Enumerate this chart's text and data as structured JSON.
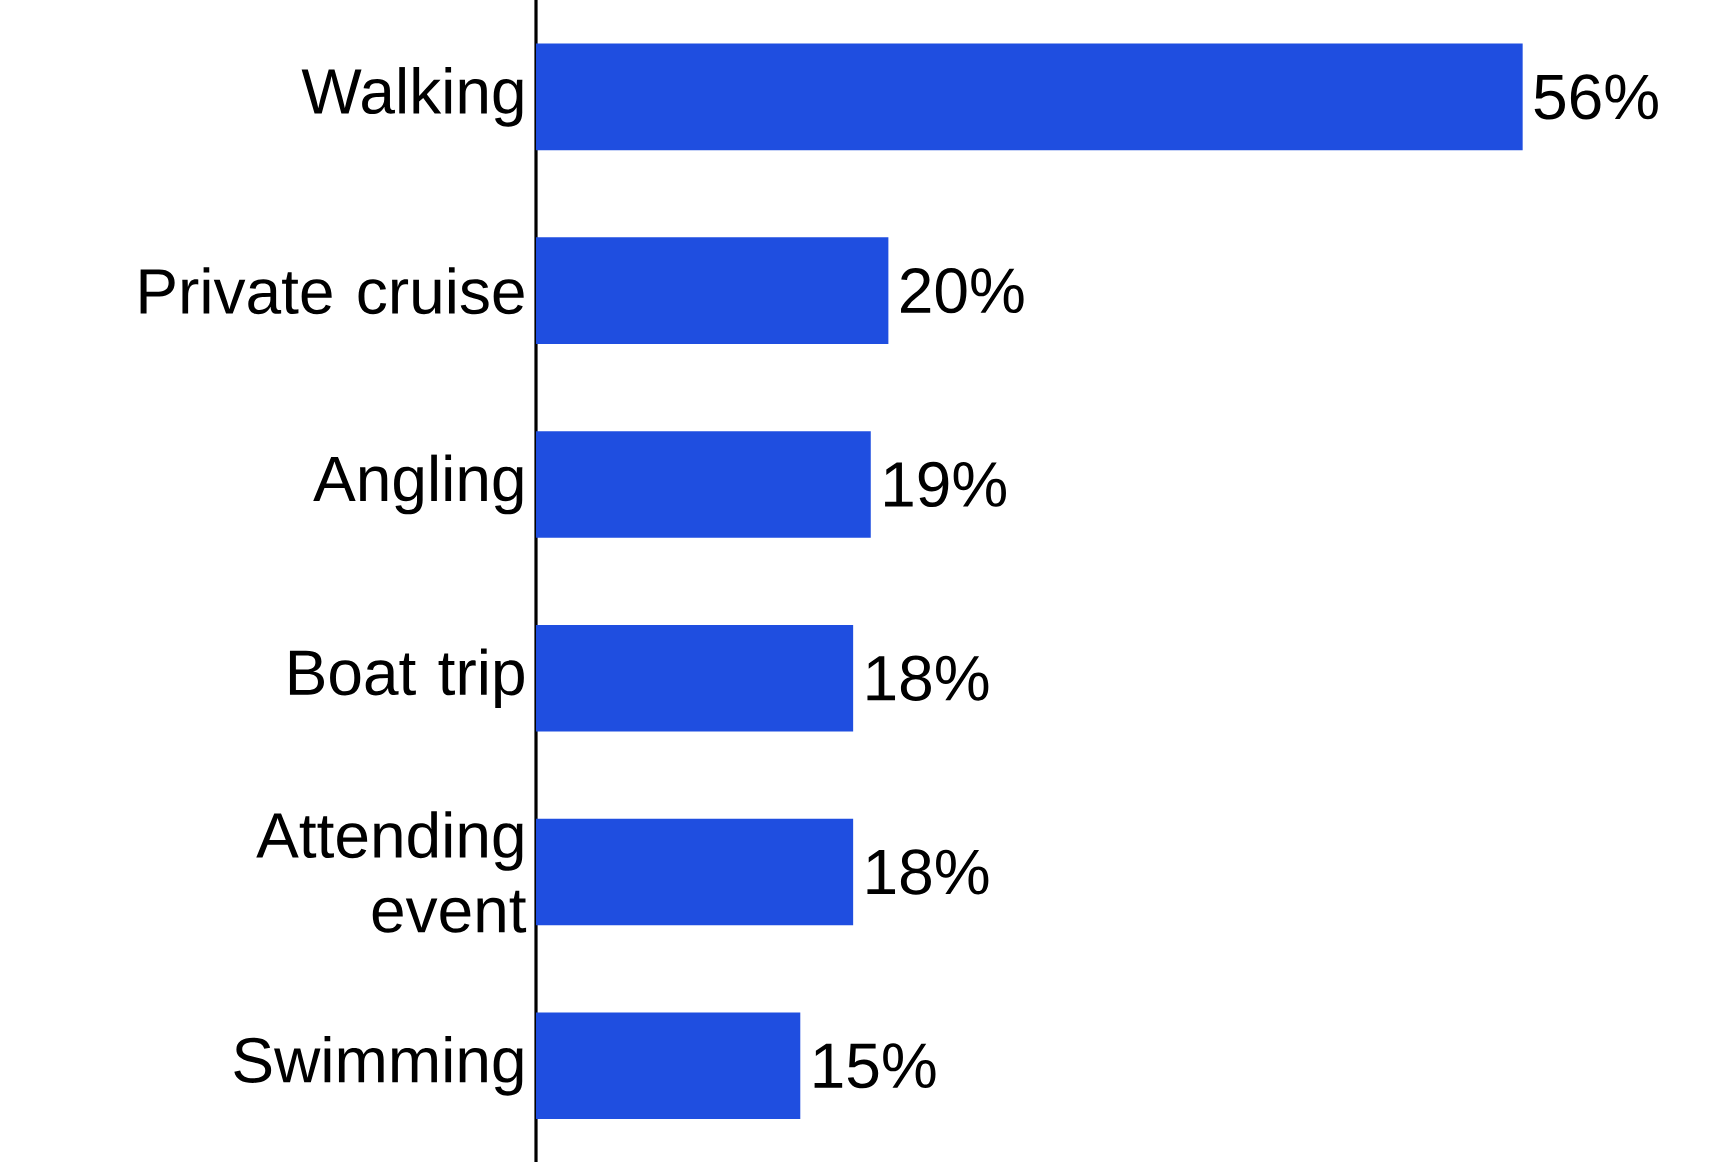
{
  "chart_data": {
    "type": "bar",
    "orientation": "horizontal",
    "categories": [
      "Walking",
      "Private cruise",
      "Angling",
      "Boat trip",
      "Attending event",
      "Swimming"
    ],
    "values": [
      56,
      20,
      19,
      18,
      18,
      15
    ],
    "value_labels": [
      "56%",
      "20%",
      "19%",
      "18%",
      "18%",
      "15%"
    ],
    "color": "#1f4ee0"
  }
}
